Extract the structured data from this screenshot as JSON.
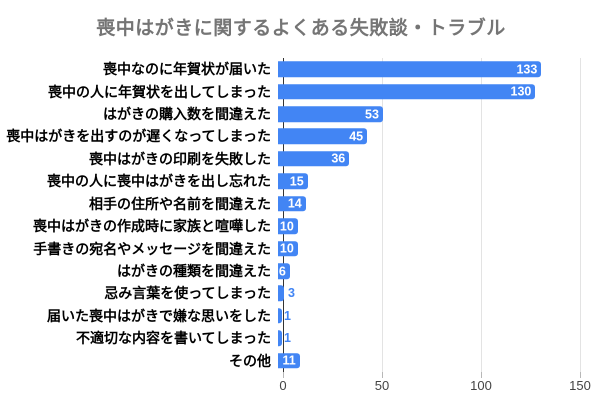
{
  "chart_data": {
    "type": "bar",
    "orientation": "horizontal",
    "title": "喪中はがきに関するよくある失敗談・トラブル",
    "categories": [
      "喪中なのに年賀状が届いた",
      "喪中の人に年賀状を出してしまった",
      "はがきの購入数を間違えた",
      "喪中はがきを出すのが遅くなってしまった",
      "喪中はがきの印刷を失敗した",
      "喪中の人に喪中はがきを出し忘れた",
      "相手の住所や名前を間違えた",
      "喪中はがきの作成時に家族と喧嘩した",
      "手書きの宛名やメッセージを間違えた",
      "はがきの種類を間違えた",
      "忌み言葉を使ってしまった",
      "届いた喪中はがきで嫌な思いをした",
      "不適切な内容を書いてしまった",
      "その他"
    ],
    "values": [
      133,
      130,
      53,
      45,
      36,
      15,
      14,
      10,
      10,
      6,
      3,
      1,
      1,
      11
    ],
    "xlabel": "",
    "ylabel": "",
    "xlim": [
      0,
      150
    ],
    "x_ticks": [
      0,
      50,
      100,
      150
    ],
    "grid": true,
    "legend": "none",
    "colors": {
      "bar": "#4285f4",
      "value_inside": "#ffffff",
      "value_outside": "#4285f4",
      "title": "#757575",
      "gridline": "#e3e3e3",
      "axis_line": "#333333",
      "tick": "#b7b7b7",
      "axis_label": "#444444",
      "category_label": "#000000"
    }
  }
}
